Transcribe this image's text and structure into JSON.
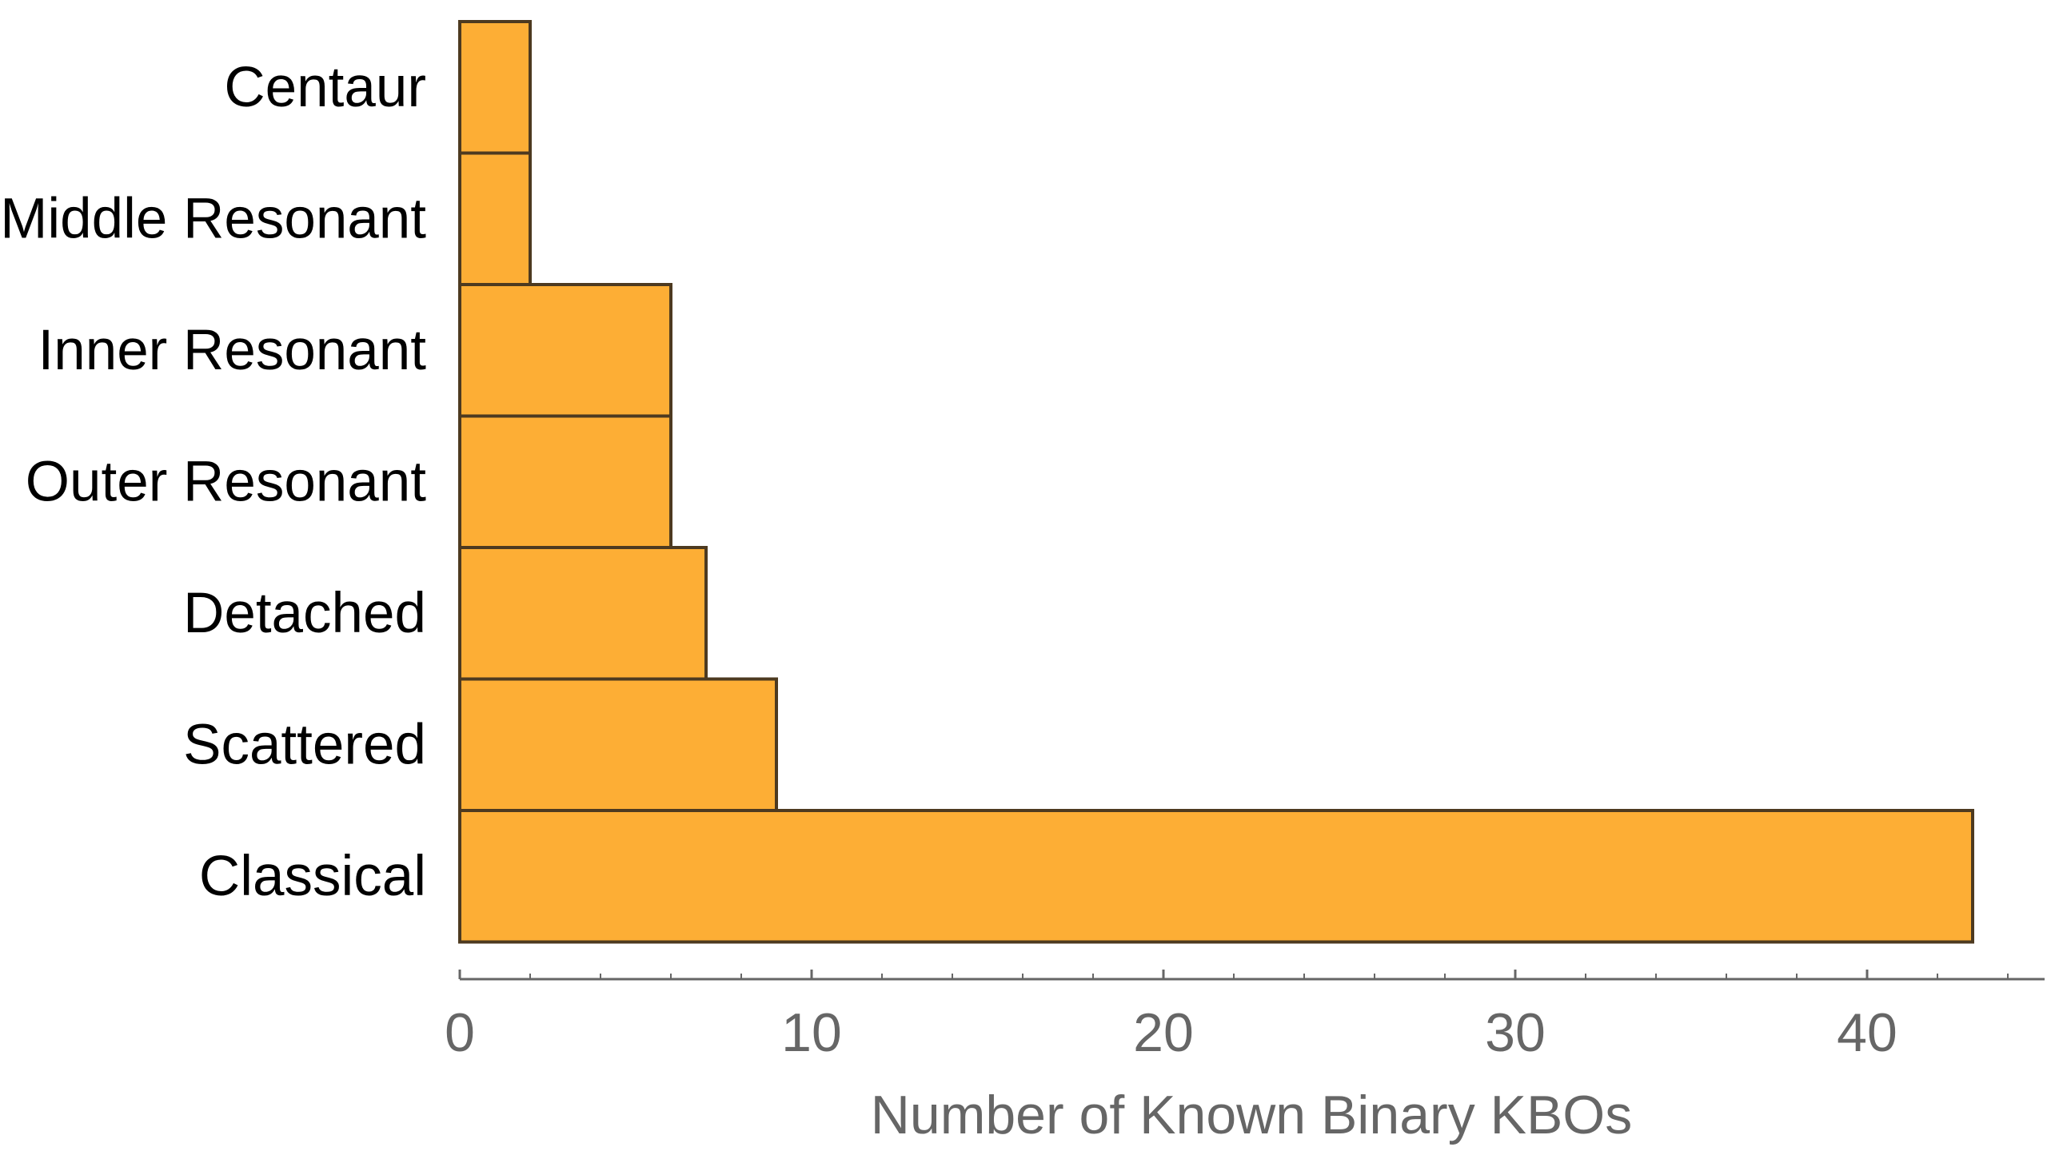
{
  "chart_data": {
    "type": "bar",
    "orientation": "horizontal",
    "categories": [
      "Centaur",
      "Middle Resonant",
      "Inner Resonant",
      "Outer Resonant",
      "Detached",
      "Scattered",
      "Classical"
    ],
    "values": [
      2,
      2,
      6,
      6,
      7,
      9,
      43
    ],
    "xlabel": "Number of Known Binary KBOs",
    "ylabel": "",
    "xlim": [
      0,
      45
    ],
    "xticks": [
      "0",
      "10",
      "20",
      "30",
      "40"
    ],
    "minor_tick_step": 2,
    "grid": false,
    "legend": "none",
    "colors": {
      "bar_fill": "#FDAE35",
      "bar_stroke": "#4D3A20",
      "axis": "#666666",
      "category_text": "#000000",
      "tick_text": "#666666"
    }
  }
}
